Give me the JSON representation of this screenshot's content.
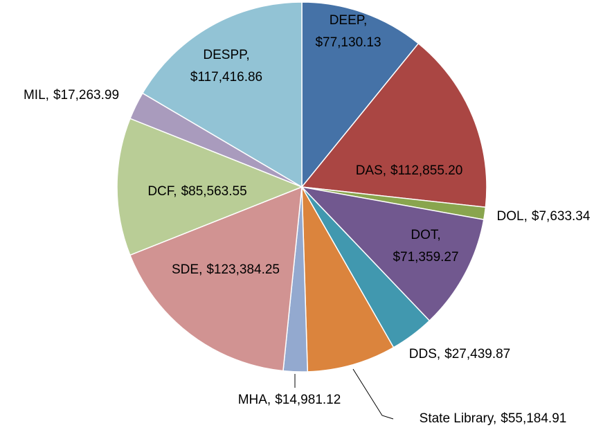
{
  "chart_data": {
    "type": "pie",
    "categories": [
      "DEEP",
      "DAS",
      "DOL",
      "DOT",
      "DDS",
      "State Library",
      "MHA",
      "SDE",
      "DCF",
      "MIL",
      "DESPP"
    ],
    "values": [
      77130.13,
      112855.2,
      7633.34,
      71359.27,
      27439.87,
      55184.91,
      14981.12,
      123384.25,
      85563.55,
      17263.99,
      117416.86
    ],
    "value_labels": [
      "$77,130.13",
      "$112,855.20",
      "$7,633.34",
      "$71,359.27",
      "$27,439.87",
      "$55,184.91",
      "$14,981.12",
      "$123,384.25",
      "$85,563.55",
      "$17,263.99",
      "$117,416.86"
    ],
    "label_separator": ",",
    "colors": [
      "#4572a7",
      "#aa4643",
      "#89a54e",
      "#71588f",
      "#4198af",
      "#db843d",
      "#93a9cf",
      "#d19392",
      "#b9cd96",
      "#a99bbd",
      "#92c3d5"
    ]
  }
}
